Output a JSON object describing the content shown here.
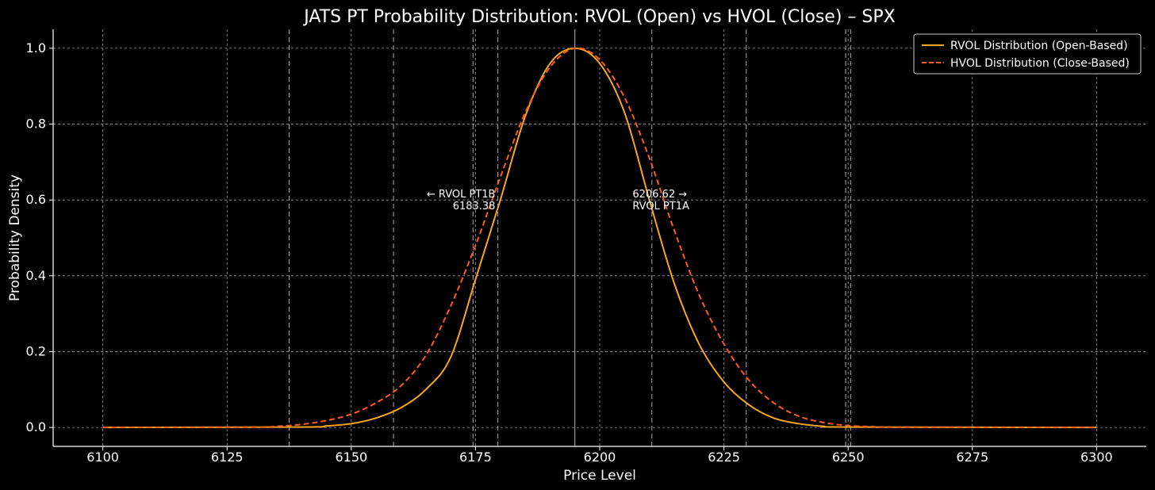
{
  "chart_data": {
    "type": "line",
    "title": "JATS PT Probability Distribution: RVOL (Open) vs HVOL (Close) – SPX",
    "xlabel": "Price Level",
    "ylabel": "Probability Density",
    "xlim": [
      6090,
      6310
    ],
    "ylim": [
      -0.05,
      1.05
    ],
    "x_ticks": [
      6100,
      6125,
      6150,
      6175,
      6200,
      6225,
      6250,
      6275,
      6300
    ],
    "y_ticks": [
      0.0,
      0.2,
      0.4,
      0.6,
      0.8,
      1.0
    ],
    "grid": true,
    "legend_position": "top-right",
    "series": [
      {
        "name": "RVOL Distribution (Open-Based)",
        "color": "#f5a623",
        "style": "solid",
        "x": [
          6100,
          6140,
          6145,
          6150,
          6155,
          6160,
          6165,
          6170,
          6175,
          6180,
          6185,
          6190,
          6195,
          6200,
          6205,
          6210,
          6215,
          6220,
          6225,
          6230,
          6235,
          6240,
          6245,
          6250,
          6300
        ],
        "y": [
          0.0,
          0.001,
          0.004,
          0.01,
          0.025,
          0.052,
          0.1,
          0.185,
          0.39,
          0.6,
          0.82,
          0.96,
          1.0,
          0.96,
          0.83,
          0.6,
          0.38,
          0.22,
          0.12,
          0.06,
          0.025,
          0.01,
          0.003,
          0.001,
          0.0
        ]
      },
      {
        "name": "HVOL Distribution (Close-Based)",
        "color": "#ff5a1f",
        "style": "dashed",
        "x": [
          6100,
          6130,
          6135,
          6140,
          6145,
          6150,
          6155,
          6160,
          6165,
          6170,
          6175,
          6180,
          6185,
          6190,
          6195,
          6200,
          6205,
          6210,
          6215,
          6220,
          6225,
          6230,
          6235,
          6240,
          6245,
          6250,
          6255,
          6260,
          6300
        ],
        "y": [
          0.0,
          0.001,
          0.003,
          0.008,
          0.018,
          0.035,
          0.065,
          0.11,
          0.19,
          0.32,
          0.48,
          0.66,
          0.83,
          0.95,
          1.0,
          0.97,
          0.87,
          0.71,
          0.52,
          0.35,
          0.22,
          0.125,
          0.065,
          0.03,
          0.013,
          0.005,
          0.002,
          0.001,
          0.0
        ]
      }
    ],
    "vlines": [
      {
        "x": 6195,
        "color": "#9a9a9a",
        "style": "solid"
      },
      {
        "x": 6137.5,
        "color": "#aaaaaa",
        "style": "dashed"
      },
      {
        "x": 6158.5,
        "color": "#aaaaaa",
        "style": "dashed"
      },
      {
        "x": 6174.5,
        "color": "#aaaaaa",
        "style": "dashed"
      },
      {
        "x": 6179.5,
        "color": "#aaaaaa",
        "style": "dashed"
      },
      {
        "x": 6210.5,
        "color": "#aaaaaa",
        "style": "dashed"
      },
      {
        "x": 6229.5,
        "color": "#aaaaaa",
        "style": "dashed"
      },
      {
        "x": 6249.5,
        "color": "#aaaaaa",
        "style": "dashed"
      },
      {
        "x": 6250.5,
        "color": "#aaaaaa",
        "style": "dashed"
      }
    ],
    "annotations": [
      {
        "lines": [
          "← RVOL PT1B",
          "6183.38"
        ],
        "x": 6179,
        "y": 0.6,
        "align": "right"
      },
      {
        "lines": [
          "6206.62 →",
          "RVOL PT1A"
        ],
        "x": 6206.6,
        "y": 0.6,
        "align": "left"
      }
    ]
  }
}
